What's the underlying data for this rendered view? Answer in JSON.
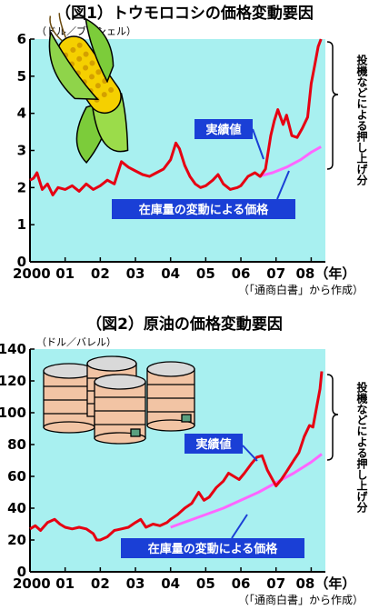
{
  "chart_data": [
    {
      "type": "line",
      "title": "（図1）トウモロコシの価格変動要因",
      "ylabel": "（ドル／ブッシェル）",
      "source": "（「通商白書」から作成）",
      "ylim": [
        0,
        6
      ],
      "yticks": [
        "0",
        "1",
        "2",
        "3",
        "4",
        "5",
        "6"
      ],
      "xticks": [
        "2000",
        "01",
        "02",
        "03",
        "04",
        "05",
        "06",
        "07",
        "08（年）"
      ],
      "xlim": [
        2000,
        2008.3
      ],
      "series": [
        {
          "name": "実績値",
          "color": "#e60012",
          "points": [
            [
              2000.0,
              2.2
            ],
            [
              2000.1,
              2.25
            ],
            [
              2000.2,
              2.4
            ],
            [
              2000.35,
              1.95
            ],
            [
              2000.5,
              2.1
            ],
            [
              2000.65,
              1.8
            ],
            [
              2000.8,
              2.0
            ],
            [
              2001.0,
              1.95
            ],
            [
              2001.2,
              2.05
            ],
            [
              2001.4,
              1.9
            ],
            [
              2001.6,
              2.1
            ],
            [
              2001.8,
              1.95
            ],
            [
              2002.0,
              2.05
            ],
            [
              2002.2,
              2.2
            ],
            [
              2002.4,
              2.1
            ],
            [
              2002.5,
              2.4
            ],
            [
              2002.6,
              2.7
            ],
            [
              2002.8,
              2.55
            ],
            [
              2003.0,
              2.45
            ],
            [
              2003.2,
              2.35
            ],
            [
              2003.4,
              2.3
            ],
            [
              2003.6,
              2.4
            ],
            [
              2003.8,
              2.5
            ],
            [
              2004.0,
              2.75
            ],
            [
              2004.15,
              3.2
            ],
            [
              2004.25,
              3.05
            ],
            [
              2004.4,
              2.6
            ],
            [
              2004.55,
              2.3
            ],
            [
              2004.7,
              2.1
            ],
            [
              2004.85,
              2.0
            ],
            [
              2005.0,
              2.05
            ],
            [
              2005.2,
              2.2
            ],
            [
              2005.35,
              2.35
            ],
            [
              2005.5,
              2.1
            ],
            [
              2005.7,
              1.95
            ],
            [
              2005.9,
              2.0
            ],
            [
              2006.0,
              2.05
            ],
            [
              2006.2,
              2.3
            ],
            [
              2006.4,
              2.4
            ],
            [
              2006.55,
              2.3
            ],
            [
              2006.7,
              2.5
            ],
            [
              2006.85,
              3.4
            ],
            [
              2006.95,
              3.8
            ],
            [
              2007.05,
              4.1
            ],
            [
              2007.2,
              3.7
            ],
            [
              2007.3,
              3.95
            ],
            [
              2007.45,
              3.4
            ],
            [
              2007.6,
              3.35
            ],
            [
              2007.75,
              3.6
            ],
            [
              2007.9,
              3.9
            ],
            [
              2008.0,
              4.8
            ],
            [
              2008.1,
              5.3
            ],
            [
              2008.2,
              5.8
            ],
            [
              2008.28,
              6.0
            ]
          ]
        },
        {
          "name": "在庫量の変動による価格",
          "color": "#ff66ff",
          "points": [
            [
              2006.5,
              2.3
            ],
            [
              2006.9,
              2.4
            ],
            [
              2007.3,
              2.55
            ],
            [
              2007.7,
              2.75
            ],
            [
              2008.0,
              2.95
            ],
            [
              2008.28,
              3.1
            ]
          ]
        }
      ],
      "annotations": {
        "actual_label": "実績値",
        "stock_label": "在庫量の変動による価格",
        "bracket_label": "投機などによる押し上げ分"
      }
    },
    {
      "type": "line",
      "title": "（図2）原油の価格変動要因",
      "ylabel": "（ドル／バレル）",
      "source": "（「通商白書」から作成）",
      "ylim": [
        0,
        140
      ],
      "yticks": [
        "0",
        "20",
        "40",
        "60",
        "80",
        "100",
        "120",
        "140"
      ],
      "xticks": [
        "2000",
        "01",
        "02",
        "03",
        "04",
        "05",
        "06",
        "07",
        "08（年）"
      ],
      "xlim": [
        2000,
        2008.3
      ],
      "series": [
        {
          "name": "実績値",
          "color": "#e60012",
          "points": [
            [
              2000.0,
              27
            ],
            [
              2000.15,
              29
            ],
            [
              2000.3,
              26
            ],
            [
              2000.5,
              31
            ],
            [
              2000.7,
              33
            ],
            [
              2000.85,
              30
            ],
            [
              2001.0,
              28
            ],
            [
              2001.2,
              27
            ],
            [
              2001.4,
              28
            ],
            [
              2001.6,
              27
            ],
            [
              2001.8,
              24
            ],
            [
              2001.9,
              20
            ],
            [
              2002.0,
              20
            ],
            [
              2002.2,
              22
            ],
            [
              2002.4,
              26
            ],
            [
              2002.6,
              27
            ],
            [
              2002.8,
              28
            ],
            [
              2003.0,
              31
            ],
            [
              2003.15,
              33
            ],
            [
              2003.3,
              28
            ],
            [
              2003.5,
              30
            ],
            [
              2003.7,
              29
            ],
            [
              2003.9,
              31
            ],
            [
              2004.0,
              33
            ],
            [
              2004.2,
              36
            ],
            [
              2004.4,
              40
            ],
            [
              2004.6,
              43
            ],
            [
              2004.8,
              50
            ],
            [
              2004.95,
              45
            ],
            [
              2005.1,
              47
            ],
            [
              2005.3,
              53
            ],
            [
              2005.5,
              57
            ],
            [
              2005.65,
              62
            ],
            [
              2005.8,
              60
            ],
            [
              2005.95,
              58
            ],
            [
              2006.1,
              62
            ],
            [
              2006.3,
              68
            ],
            [
              2006.45,
              72
            ],
            [
              2006.6,
              73
            ],
            [
              2006.75,
              64
            ],
            [
              2006.85,
              60
            ],
            [
              2007.0,
              54
            ],
            [
              2007.15,
              58
            ],
            [
              2007.3,
              63
            ],
            [
              2007.5,
              70
            ],
            [
              2007.65,
              75
            ],
            [
              2007.8,
              85
            ],
            [
              2007.95,
              92
            ],
            [
              2008.05,
              91
            ],
            [
              2008.15,
              103
            ],
            [
              2008.25,
              115
            ],
            [
              2008.3,
              126
            ]
          ]
        },
        {
          "name": "在庫量の変動による価格",
          "color": "#ff66ff",
          "points": [
            [
              2004.0,
              28
            ],
            [
              2004.5,
              32
            ],
            [
              2005.0,
              36
            ],
            [
              2005.5,
              40
            ],
            [
              2006.0,
              45
            ],
            [
              2006.5,
              50
            ],
            [
              2007.0,
              56
            ],
            [
              2007.5,
              62
            ],
            [
              2008.0,
              69
            ],
            [
              2008.3,
              74
            ]
          ]
        }
      ],
      "annotations": {
        "actual_label": "実績値",
        "stock_label": "在庫量の変動による価格",
        "bracket_label": "投機などによる押し上げ分"
      }
    }
  ],
  "colors": {
    "plot_bg": "#a8f0f0",
    "red": "#e60012",
    "pink": "#ff66ff",
    "label_bg": "#1a3fd6"
  },
  "icons": {
    "chart1": "corn-icon",
    "chart2": "oil-tanks-icon"
  }
}
